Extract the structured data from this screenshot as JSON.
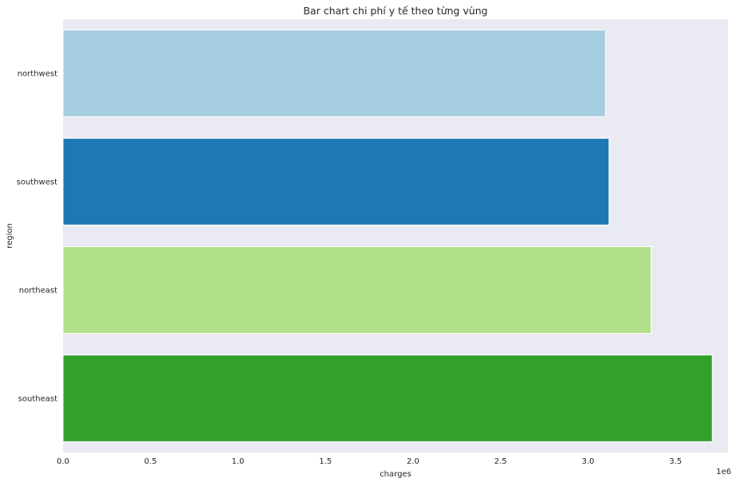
{
  "chart_data": {
    "type": "bar",
    "orientation": "horizontal",
    "title": "Bar chart chi phí y tế theo từng vùng",
    "xlabel": "charges",
    "ylabel": "region",
    "x_scale_label": "1e6",
    "xlim": [
      0,
      3.8
    ],
    "x_ticks": [
      0.0,
      0.5,
      1.0,
      1.5,
      2.0,
      2.5,
      3.0,
      3.5
    ],
    "x_tick_labels": [
      "0.0",
      "0.5",
      "1.0",
      "1.5",
      "2.0",
      "2.5",
      "3.0",
      "3.5"
    ],
    "categories": [
      "northwest",
      "southwest",
      "northeast",
      "southeast"
    ],
    "values": [
      3.1,
      3.12,
      3.36,
      3.71
    ],
    "colors": [
      "#a6cee3",
      "#1f78b4",
      "#b2df8a",
      "#33a02c"
    ],
    "background": "#eaeaf2",
    "grid": false,
    "legend": "none"
  }
}
